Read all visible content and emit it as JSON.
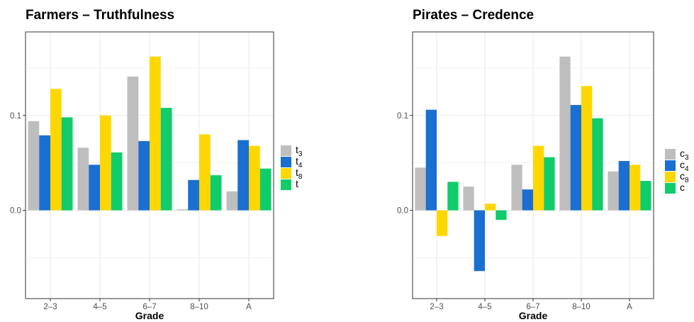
{
  "chart_data": [
    {
      "type": "bar",
      "title": "Farmers – Truthfulness",
      "xlabel": "Grade",
      "ylabel": "",
      "categories": [
        "2–3",
        "4–5",
        "6–7",
        "8–10",
        "A"
      ],
      "yticks": [
        0.0,
        0.1
      ],
      "ytick_labels": [
        "0.0",
        "0.1"
      ],
      "ylim": [
        -0.093,
        0.188
      ],
      "grid": true,
      "legend_position": "right",
      "series": [
        {
          "name": "t",
          "subscript": "3",
          "color": "#BEBEBE",
          "values": [
            0.094,
            0.066,
            0.141,
            0.001,
            0.02
          ]
        },
        {
          "name": "t",
          "subscript": "4",
          "color": "#1A6FD0",
          "values": [
            0.079,
            0.048,
            0.073,
            0.032,
            0.074
          ]
        },
        {
          "name": "t",
          "subscript": "8",
          "color": "#FFD700",
          "values": [
            0.128,
            0.1,
            0.162,
            0.08,
            0.068
          ]
        },
        {
          "name": "t",
          "subscript": "",
          "color": "#10CC6A",
          "values": [
            0.098,
            0.061,
            0.108,
            0.037,
            0.044
          ]
        }
      ]
    },
    {
      "type": "bar",
      "title": "Pirates – Credence",
      "xlabel": "Grade",
      "ylabel": "",
      "categories": [
        "2–3",
        "4–5",
        "6–7",
        "8–10",
        "A"
      ],
      "yticks": [
        0.0,
        0.1
      ],
      "ytick_labels": [
        "0.0",
        "0.1"
      ],
      "ylim": [
        -0.093,
        0.188
      ],
      "grid": true,
      "legend_position": "right",
      "series": [
        {
          "name": "c",
          "subscript": "3",
          "color": "#BEBEBE",
          "values": [
            0.045,
            0.025,
            0.048,
            0.162,
            0.041
          ]
        },
        {
          "name": "c",
          "subscript": "4",
          "color": "#1A6FD0",
          "values": [
            0.106,
            -0.064,
            0.022,
            0.111,
            0.052
          ]
        },
        {
          "name": "c",
          "subscript": "8",
          "color": "#FFD700",
          "values": [
            -0.027,
            0.007,
            0.068,
            0.131,
            0.048
          ]
        },
        {
          "name": "c",
          "subscript": "",
          "color": "#10CC6A",
          "values": [
            0.03,
            -0.01,
            0.056,
            0.097,
            0.031
          ]
        }
      ]
    }
  ]
}
